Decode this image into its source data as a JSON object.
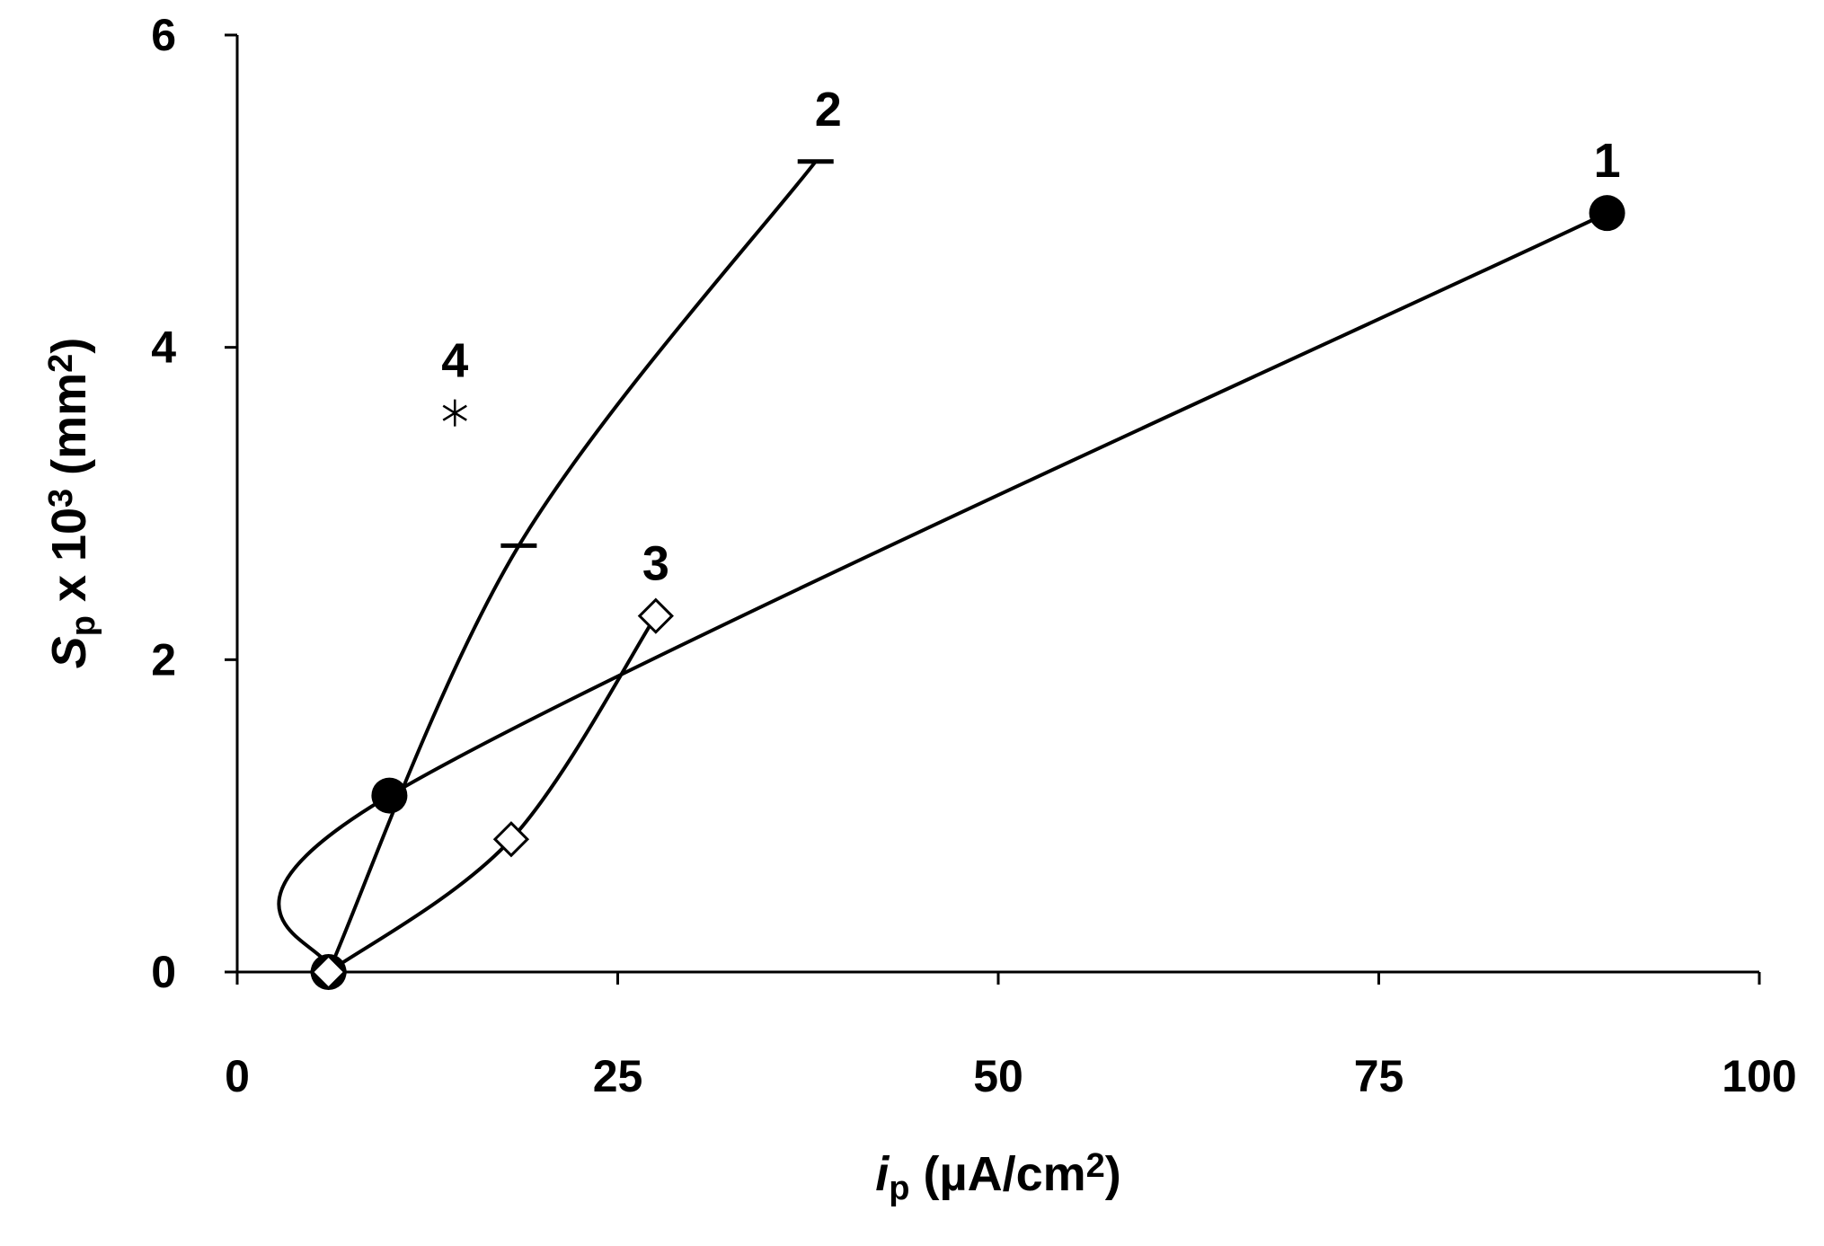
{
  "chart_data": {
    "type": "scatter",
    "xlabel": [
      {
        "text": "i",
        "style": "italic"
      },
      {
        "text": "p",
        "style": "sub"
      },
      {
        "text": " (µA/cm",
        "style": "normal"
      },
      {
        "text": "2",
        "style": "sup"
      },
      {
        "text": ")",
        "style": "normal"
      }
    ],
    "ylabel": [
      {
        "text": "S",
        "style": "italic"
      },
      {
        "text": "p",
        "style": "sub"
      },
      {
        "text": " x 10",
        "style": "normal"
      },
      {
        "text": "3",
        "style": "sup"
      },
      {
        "text": " (mm",
        "style": "normal"
      },
      {
        "text": "2",
        "style": "sup"
      },
      {
        "text": ")",
        "style": "normal"
      }
    ],
    "xlim": [
      0,
      100
    ],
    "xticks": [
      0,
      25,
      50,
      75,
      100
    ],
    "ylim": [
      0,
      6
    ],
    "yticks": [
      0,
      2,
      4,
      6
    ],
    "grid": false,
    "series": [
      {
        "name": "1",
        "color": "#000000",
        "marker": "circle",
        "line": true,
        "x": [
          6,
          10,
          90
        ],
        "values": [
          0,
          1.13,
          4.86
        ]
      },
      {
        "name": "2",
        "color": "#000000",
        "marker": "dash",
        "line": true,
        "x": [
          6,
          18.5,
          38
        ],
        "values": [
          0,
          2.73,
          5.19
        ]
      },
      {
        "name": "3",
        "color": "#000000",
        "marker": "diamond",
        "line": true,
        "x": [
          6,
          18,
          27.5
        ],
        "values": [
          0,
          0.85,
          2.28
        ]
      },
      {
        "name": "4",
        "color": "#000000",
        "marker": "asterisk",
        "line": false,
        "x": [
          14.3
        ],
        "values": [
          3.58
        ]
      }
    ]
  }
}
